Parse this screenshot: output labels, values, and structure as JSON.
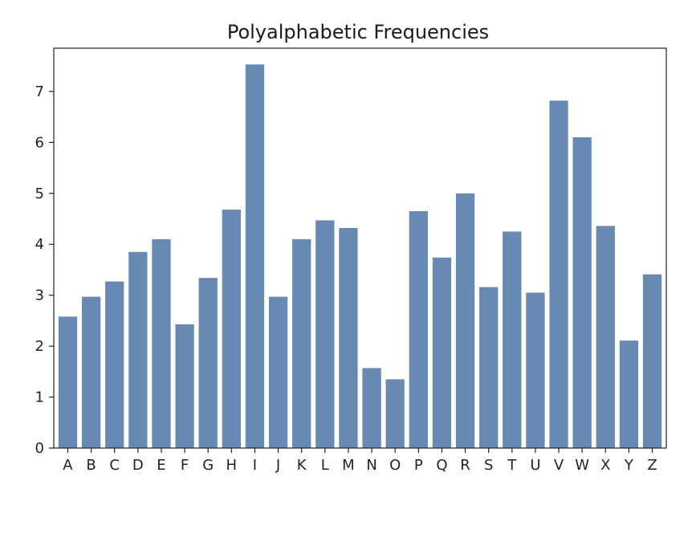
{
  "chart_data": {
    "type": "bar",
    "title": "Polyalphabetic Frequencies",
    "xlabel": "",
    "ylabel": "",
    "categories": [
      "A",
      "B",
      "C",
      "D",
      "E",
      "F",
      "G",
      "H",
      "I",
      "J",
      "K",
      "L",
      "M",
      "N",
      "O",
      "P",
      "Q",
      "R",
      "S",
      "T",
      "U",
      "V",
      "W",
      "X",
      "Y",
      "Z"
    ],
    "values": [
      2.58,
      2.97,
      3.27,
      3.85,
      4.1,
      2.43,
      3.34,
      4.68,
      7.53,
      2.97,
      4.1,
      4.47,
      4.32,
      1.57,
      1.35,
      4.65,
      3.74,
      5.0,
      3.16,
      4.25,
      3.05,
      6.82,
      6.1,
      4.36,
      2.11,
      3.41
    ],
    "ylim": [
      0,
      7.85
    ],
    "yticks": [
      0,
      1,
      2,
      3,
      4,
      5,
      6,
      7
    ],
    "bar_color": "#6789b2",
    "grid": false,
    "legend": "none"
  }
}
